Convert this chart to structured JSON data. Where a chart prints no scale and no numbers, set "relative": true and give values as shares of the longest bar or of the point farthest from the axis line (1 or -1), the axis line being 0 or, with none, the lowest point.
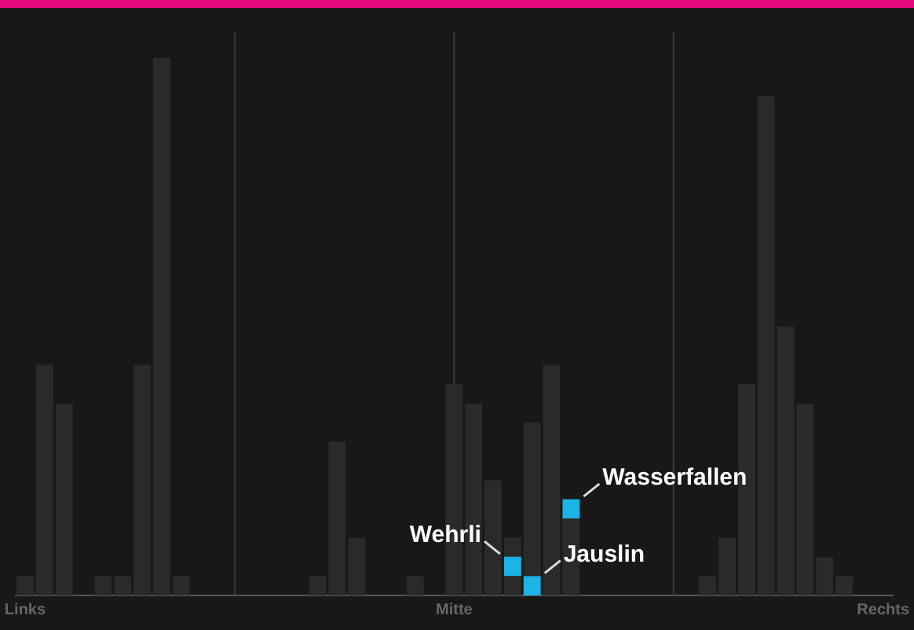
{
  "chart_data": {
    "type": "bar",
    "relative": true,
    "stacked": true,
    "legend": false,
    "grid": "x",
    "categories": [
      "Links",
      null,
      null,
      null,
      null,
      null,
      null,
      null,
      null,
      null,
      null,
      null,
      null,
      null,
      null,
      null,
      null,
      null,
      null,
      null,
      null,
      null,
      "Mitte",
      null,
      null,
      null,
      null,
      null,
      null,
      null,
      null,
      null,
      null,
      null,
      null,
      null,
      null,
      null,
      null,
      null,
      null,
      null,
      null,
      null,
      "Rechts"
    ],
    "series": [
      {
        "color": "#2a2a2a",
        "values": [
          0.036,
          0.429,
          0.357,
          0,
          0.036,
          0.036,
          0.429,
          1,
          0.036,
          0,
          0,
          0,
          0,
          0,
          0,
          0.036,
          0.286,
          0.107,
          0,
          0,
          0.036,
          0,
          0.393,
          0.357,
          0.214,
          0.036,
          0,
          0.429,
          0.143,
          0,
          0,
          0,
          0,
          0,
          0,
          0.036,
          0.107,
          0.393,
          0.929,
          0.5,
          0.357,
          0.071,
          0.036,
          0,
          0
        ]
      },
      {
        "color": "#1bb4e4",
        "values": [
          0,
          0,
          0,
          0,
          0,
          0,
          0,
          0,
          0,
          0,
          0,
          0,
          0,
          0,
          0,
          0,
          0,
          0,
          0,
          0,
          0,
          0,
          0,
          0,
          0,
          0.036,
          0.036,
          0,
          0.036,
          0,
          0,
          0,
          0,
          0,
          0,
          0,
          0,
          0,
          0,
          0,
          0,
          0,
          0,
          0,
          0
        ]
      },
      {
        "color": "#2a2a2a",
        "values": [
          0,
          0,
          0,
          0,
          0,
          0,
          0,
          0,
          0,
          0,
          0,
          0,
          0,
          0,
          0,
          0,
          0,
          0,
          0,
          0,
          0,
          0,
          0,
          0,
          0,
          0.036,
          0.286,
          0,
          0,
          0,
          0,
          0,
          0,
          0,
          0,
          0,
          0,
          0,
          0,
          0,
          0,
          0,
          0,
          0,
          0
        ]
      }
    ],
    "annotations": [
      "Wehrli",
      "Jauslin",
      "Wasserfallen"
    ]
  }
}
